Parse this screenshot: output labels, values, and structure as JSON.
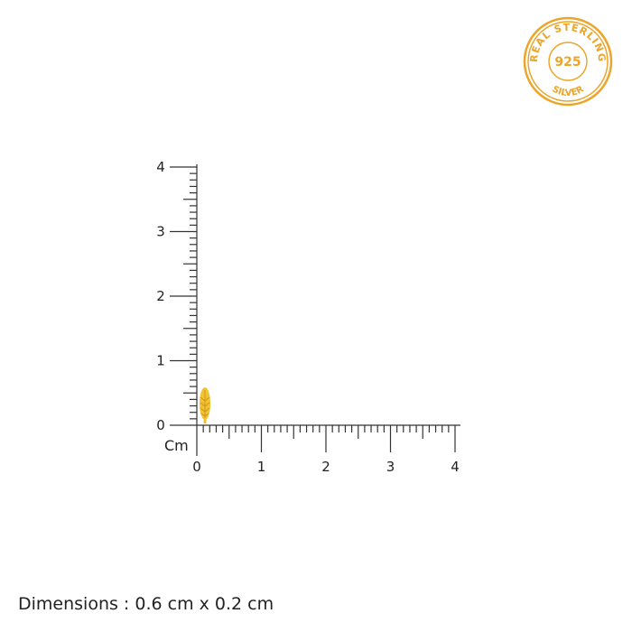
{
  "ruler": {
    "unit_label": "Cm",
    "x_ticks": [
      "0",
      "1",
      "2",
      "3",
      "4"
    ],
    "y_ticks": [
      "0",
      "1",
      "2",
      "3",
      "4"
    ],
    "range_cm": [
      0,
      4
    ],
    "minor_divisions_per_cm": 10
  },
  "product": {
    "icon": "leaf-earring-icon",
    "height_cm": 0.6,
    "width_cm": 0.2,
    "color": "#f2c230"
  },
  "seal": {
    "top_text": "REAL STERLING",
    "center_text": "925",
    "bottom_text": "SILVER",
    "color": "#eba52b"
  },
  "dimensions_text": "Dimensions : 0.6 cm x 0.2 cm"
}
